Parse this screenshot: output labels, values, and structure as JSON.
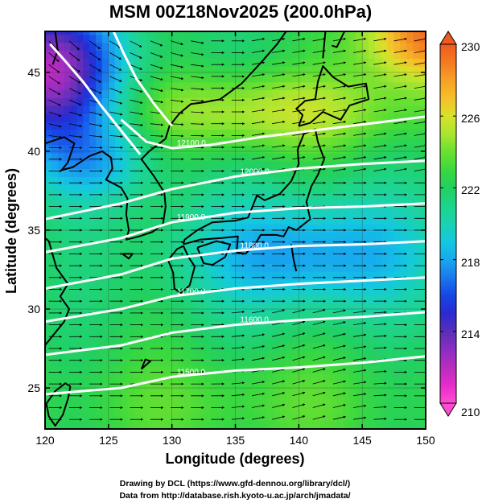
{
  "figure": {
    "title": "MSM 00Z18Nov2025 (200.0hPa)",
    "xlabel": "Longitude (degrees)",
    "ylabel": "Latitude  (degrees)",
    "credit_line1": "Drawing by DCL (https://www.gfd-dennou.org/library/dcl/)",
    "credit_line2": "Data from http://database.rish.kyoto-u.ac.jp/arch/jmadata/"
  },
  "chart_data": {
    "type": "heatmap",
    "title": "MSM 00Z18Nov2025 (200.0hPa)",
    "xlabel": "Longitude (degrees)",
    "ylabel": "Latitude  (degrees)",
    "xlim": [
      120,
      150
    ],
    "ylim": [
      22.4,
      47.6
    ],
    "x_ticks": [
      120,
      125,
      130,
      135,
      140,
      145,
      150
    ],
    "y_ticks": [
      25,
      30,
      35,
      40,
      45
    ],
    "grid": true,
    "shaded_variable_range": [
      210,
      230
    ],
    "colorbar": {
      "min": 210,
      "max": 230,
      "ticks": [
        210,
        214,
        218,
        222,
        226,
        230
      ],
      "levels": [
        210,
        211,
        212,
        213,
        214,
        215,
        216,
        217,
        218,
        219,
        220,
        221,
        222,
        223,
        224,
        225,
        226,
        227,
        228,
        229,
        230
      ],
      "colors": [
        "#ff4dd2",
        "#e62cc8",
        "#b82cc0",
        "#8a2ec0",
        "#5a2eb8",
        "#2a2ad0",
        "#1546e6",
        "#1a78ee",
        "#18a8ee",
        "#14c8e0",
        "#1ad2b0",
        "#1ed48a",
        "#22d060",
        "#3ad840",
        "#6ae030",
        "#a8e630",
        "#d8e22a",
        "#f5c02a",
        "#f7a025",
        "#f47a20",
        "#f05a1e"
      ],
      "extend_arrows": true
    },
    "contours": [
      {
        "label": "11500.0",
        "lon": [
          120,
          126,
          130,
          135,
          140,
          145,
          150
        ],
        "lat": [
          24.6,
          25.0,
          25.7,
          26.1,
          26.3,
          26.6,
          27.0
        ]
      },
      {
        "label": "11600.0",
        "lon": [
          120,
          126,
          130,
          135,
          140,
          145,
          150
        ],
        "lat": [
          27.1,
          27.7,
          28.5,
          29.0,
          29.3,
          29.5,
          29.8
        ]
      },
      {
        "label": "11700.0",
        "lon": [
          120,
          126,
          130,
          135,
          140,
          145,
          150
        ],
        "lat": [
          29.2,
          30.0,
          30.8,
          31.3,
          31.6,
          31.8,
          32.0
        ]
      },
      {
        "label": "11800.0",
        "lon": [
          120,
          126,
          130,
          135,
          140,
          145,
          150
        ],
        "lat": [
          31.3,
          32.2,
          33.2,
          33.7,
          34.0,
          34.1,
          34.3
        ]
      },
      {
        "label": "11900.0",
        "lon": [
          120,
          126,
          130,
          135,
          140,
          145,
          150
        ],
        "lat": [
          33.6,
          34.5,
          35.5,
          36.1,
          36.4,
          36.5,
          36.7
        ]
      },
      {
        "label": "12000.0",
        "lon": [
          120,
          126,
          130,
          135,
          140,
          145,
          150
        ],
        "lat": [
          35.7,
          36.7,
          37.6,
          38.4,
          38.9,
          39.2,
          39.4
        ]
      },
      {
        "label": "12100.0",
        "lon": [
          126,
          128,
          130,
          133,
          137,
          142,
          146,
          150
        ],
        "lat": [
          42.0,
          40.6,
          40.2,
          40.4,
          40.9,
          41.4,
          41.8,
          42.2
        ]
      },
      {
        "label": "",
        "lon": [
          120.4,
          121.5,
          123.0,
          124.5,
          126.0,
          127.5
        ],
        "lat": [
          46.8,
          45.8,
          44.4,
          42.8,
          41.3,
          39.8
        ]
      },
      {
        "label": "",
        "lon": [
          125.4,
          126.2,
          127.2,
          128.6,
          130.0
        ],
        "lat": [
          47.6,
          46.2,
          44.6,
          43.0,
          41.6
        ]
      }
    ],
    "vectors": "wind streamline arrows, predominantly westerly (west to east) across the domain"
  },
  "legend_marks": {
    "cb_label_210": "210",
    "cb_label_214": "214",
    "cb_label_218": "218",
    "cb_label_222": "222",
    "cb_label_226": "226",
    "cb_label_230": "230"
  }
}
